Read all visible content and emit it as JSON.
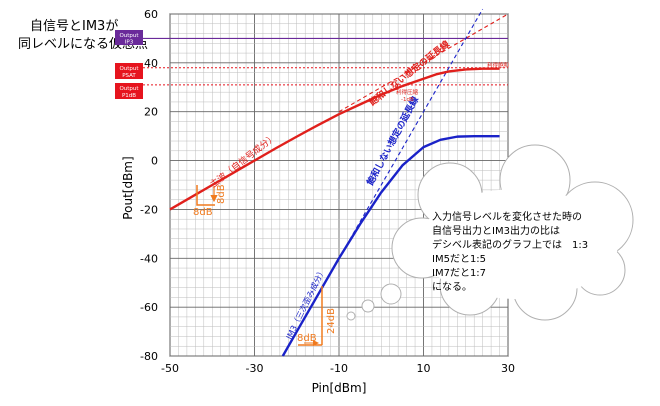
{
  "chart_data": {
    "type": "line",
    "xlabel": "Pin[dBm]",
    "ylabel": "Pout[dBm]",
    "xlim": [
      -50,
      30
    ],
    "ylim": [
      -80,
      60
    ],
    "x_ticks": [
      "-50",
      "-30",
      "-10",
      "10",
      "30"
    ],
    "y_ticks": [
      "-80",
      "-60",
      "-40",
      "-20",
      "0",
      "20",
      "40",
      "60"
    ],
    "grid": true,
    "series": [
      {
        "name": "主波（自信号成分）",
        "color": "#e0201c",
        "x": [
          -50,
          -45,
          -40,
          -35,
          -30,
          -25,
          -20,
          -15,
          -10,
          -5,
          0,
          5,
          10,
          13,
          16,
          20,
          24,
          28
        ],
        "y": [
          -20,
          -15,
          -10,
          -5,
          0,
          5,
          9.8,
          14.5,
          19,
          23,
          27,
          30.5,
          33.5,
          35.3,
          36.5,
          37.3,
          37.6,
          37.6
        ]
      },
      {
        "name": "IM3（三次歪み成分）",
        "color": "#1a22c8",
        "x": [
          -23.3,
          -20,
          -15,
          -10,
          -5,
          0,
          5,
          10,
          14,
          18,
          22,
          26,
          28
        ],
        "y": [
          -80,
          -70,
          -55,
          -40,
          -26,
          -13,
          -2,
          5.5,
          8.5,
          9.8,
          10,
          10,
          10
        ]
      }
    ],
    "extrapolations": [
      {
        "name": "主波 飽和しない想定の延長線",
        "color": "#e0201c",
        "x": [
          -10,
          30
        ],
        "y": [
          20,
          60
        ]
      },
      {
        "name": "IM3 飽和しない想定の延長線",
        "color": "#1a22c8",
        "x": [
          -10,
          24
        ],
        "y": [
          -40,
          62
        ]
      }
    ]
  },
  "title": {
    "line1": "自信号とIM3が",
    "line2": "同レベルになる仮想点"
  },
  "output_labels": {
    "ip3": {
      "top": "Output",
      "bottom": "IP3",
      "value": 50
    },
    "psat": {
      "top": "Output",
      "bottom": "PSAT",
      "value": 38
    },
    "p1db": {
      "top": "Output",
      "bottom": "P1dB",
      "value": 31
    }
  },
  "annotations": {
    "extension_main": "飽和しない想定の延長線",
    "extension_im3": "飽和しない想定の延長線",
    "main_wave": "主波（自信号成分）",
    "im3_wave": "IM3（三次歪み成分）",
    "sat_small": "利得飽和",
    "p1db_small_1": "利得圧縮",
    "p1db_small_2": "-1dB",
    "step_main_x": "8dB",
    "step_main_y": "8dB",
    "step_im3_x": "8dB",
    "step_im3_y": "24dB"
  },
  "callout": {
    "lines": [
      "入力信号レベルを変化させた時の",
      "自信号出力とIM3出力の比は",
      "デシベル表記のグラフ上では　1:3",
      "IM5だと1:5",
      "IM7だと1:7",
      "になる。"
    ]
  },
  "colors": {
    "main": "#e0201c",
    "im3": "#1a22c8",
    "purple": "#6a2a9a",
    "label_red": "#e6141e",
    "step": "#f07a1e",
    "grid": "#bdbdbd"
  }
}
